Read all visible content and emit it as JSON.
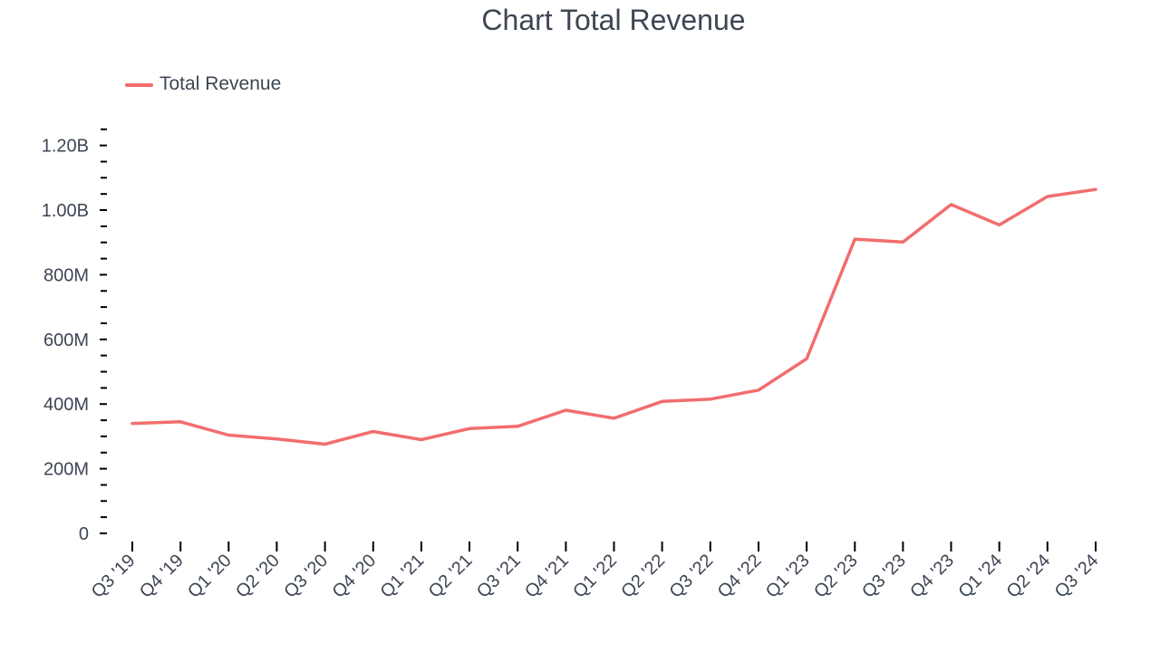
{
  "chart_data": {
    "type": "line",
    "title": "Chart Total Revenue",
    "xlabel": "",
    "ylabel": "",
    "categories": [
      "Q3 '19",
      "Q4 '19",
      "Q1 '20",
      "Q2 '20",
      "Q3 '20",
      "Q4 '20",
      "Q1 '21",
      "Q2 '21",
      "Q3 '21",
      "Q4 '21",
      "Q1 '22",
      "Q2 '22",
      "Q3 '22",
      "Q4 '22",
      "Q1 '23",
      "Q2 '23",
      "Q3 '23",
      "Q4 '23",
      "Q1 '24",
      "Q2 '24",
      "Q3 '24"
    ],
    "series": [
      {
        "name": "Total Revenue",
        "color": "#f26d6d",
        "values": [
          340000000,
          345000000,
          304000000,
          292000000,
          276000000,
          315000000,
          290000000,
          324000000,
          331000000,
          381000000,
          356000000,
          408000000,
          415000000,
          443000000,
          540000000,
          910000000,
          901000000,
          1017000000,
          954000000,
          1042000000,
          1064000000
        ]
      }
    ],
    "ylim": [
      0,
      1250000000
    ],
    "yticks": [
      {
        "value": 0,
        "label": "0"
      },
      {
        "value": 200000000,
        "label": "200M"
      },
      {
        "value": 400000000,
        "label": "400M"
      },
      {
        "value": 600000000,
        "label": "600M"
      },
      {
        "value": 800000000,
        "label": "800M"
      },
      {
        "value": 1000000000,
        "label": "1.00B"
      },
      {
        "value": 1200000000,
        "label": "1.20B"
      }
    ],
    "minor_tick_step": 50000000,
    "grid": false,
    "legend": "top-left"
  }
}
